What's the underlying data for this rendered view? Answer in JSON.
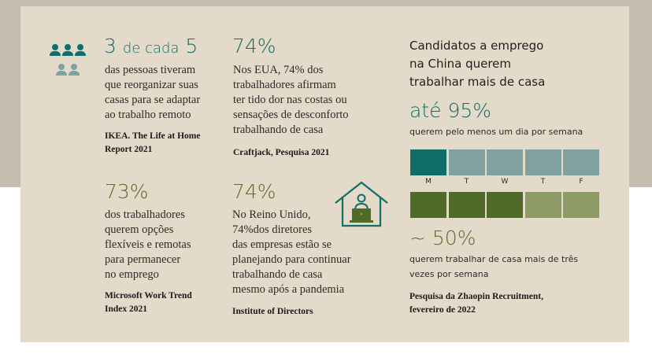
{
  "colors": {
    "teal": "#0f6f68",
    "teal_light": "#7fa19f",
    "olive": "#4f6a29",
    "olive_light": "#8e9a66",
    "background": "#e4dac9"
  },
  "stat1": {
    "num_a": "3",
    "mid": "de cada",
    "num_b": "5",
    "lines": [
      "das pessoas tiveram",
      "que reorganizar suas",
      "casas para se adaptar",
      "ao trabalho remoto"
    ],
    "source": [
      "IKEA. The Life at Home",
      "Report 2021"
    ],
    "icon": "people-group-icon"
  },
  "stat2": {
    "value": "74%",
    "lines": [
      "Nos EUA, 74% dos",
      "trabalhadores afirmam",
      "ter tido dor nas costas ou",
      "sensações de desconforto",
      "trabalhando de casa"
    ],
    "source": [
      "Craftjack, Pesquisa 2021"
    ]
  },
  "stat3": {
    "value": "73%",
    "lines": [
      "dos trabalhadores",
      "querem opções",
      "flexíveis e remotas",
      "para permanecer",
      "no emprego"
    ],
    "source": [
      "Microsoft Work Trend",
      "Index 2021"
    ]
  },
  "stat4": {
    "value": "74%",
    "lines": [
      "No Reino Unido,",
      "74%dos diretores",
      "das empresas estão se",
      "planejando para continuar",
      "trabalhando de casa",
      "mesmo após a pandemia"
    ],
    "source": [
      "Institute of Directors"
    ],
    "icon": "house-laptop-icon"
  },
  "china": {
    "title": [
      "Candidatos a emprego",
      "na China querem",
      "trabalhar mais de casa"
    ],
    "value1": "até 95%",
    "caption1": "querem pelo menos um dia por semana",
    "days": [
      "M",
      "T",
      "W",
      "T",
      "F"
    ],
    "row1_filled": 1,
    "row2_filled": 3,
    "value2": "~ 50%",
    "caption2": [
      "querem trabalhar de casa mais de três",
      "vezes por semana"
    ],
    "source": [
      "Pesquisa da Zhaopin Recruitment,",
      "fevereiro de 2022"
    ]
  }
}
